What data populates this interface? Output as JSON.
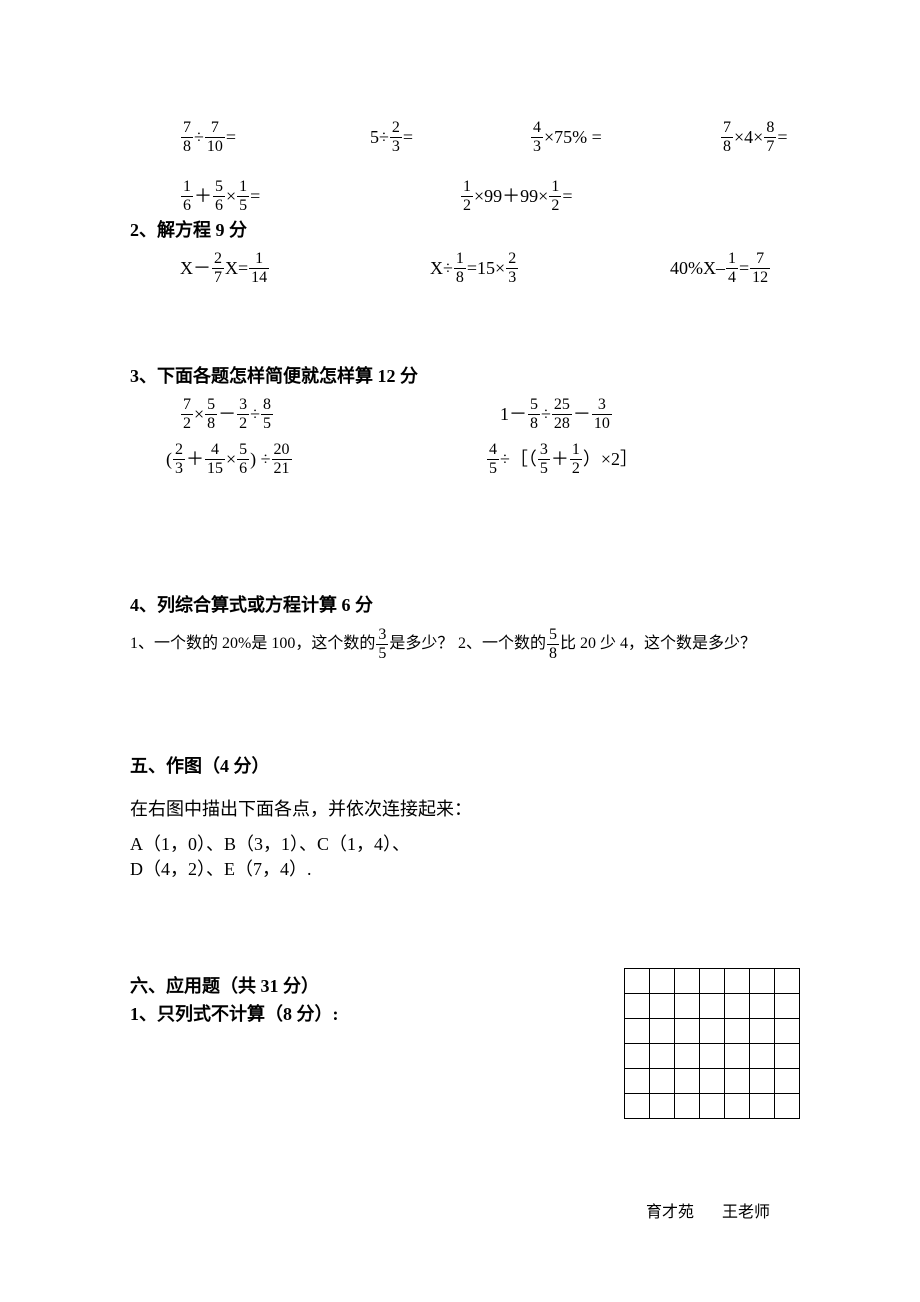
{
  "r1": {
    "e1": {
      "n1": "7",
      "d1": "8",
      "op": "÷",
      "n2": "7",
      "d2": "10",
      "tail": "="
    },
    "e2": {
      "pre": "5÷",
      "n": "2",
      "d": "3",
      "tail": "="
    },
    "e3": {
      "n": "4",
      "d": "3",
      "tail": "×75% ="
    },
    "e4": {
      "n1": "7",
      "d1": "8",
      "mid": "×4×",
      "n2": "8",
      "d2": "7",
      "tail": "="
    }
  },
  "r2": {
    "e1": {
      "n1": "1",
      "d1": "6",
      "op": "＋",
      "n2": "5",
      "d2": "6",
      "op2": "×",
      "n3": "1",
      "d3": "5",
      "tail": "="
    },
    "e2": {
      "n1": "1",
      "d1": "2",
      "mid": "×99＋99×",
      "n2": "1",
      "d2": "2",
      "tail": "="
    }
  },
  "h2": "2、解方程 9 分",
  "r3": {
    "e1": {
      "pre": "X－",
      "n": "2",
      "d": "7",
      "tail1": "X=",
      "n2": "1",
      "d2": "14"
    },
    "e2": {
      "pre": "X÷",
      "n": "1",
      "d": "8",
      "mid": "=15×",
      "n2": "2",
      "d2": "3"
    },
    "e3": {
      "pre": "40%X–",
      "n": "1",
      "d": "4",
      "mid": "=",
      "n2": "7",
      "d2": "12"
    }
  },
  "h3": "3、下面各题怎样简便就怎样算 12 分",
  "r4": {
    "e1": {
      "n1": "7",
      "d1": "2",
      "op1": "×",
      "n2": "5",
      "d2": "8",
      "op2": "－",
      "n3": "3",
      "d3": "2",
      "op3": "÷",
      "n4": "8",
      "d4": "5"
    },
    "e2": {
      "pre": "1－",
      "n1": "5",
      "d1": "8",
      "op1": "÷",
      "n2": "25",
      "d2": "28",
      "op2": "－",
      "n3": "3",
      "d3": "10"
    }
  },
  "r5": {
    "e1": {
      "open": "(",
      "n1": "2",
      "d1": "3",
      "op1": "＋",
      "n2": "4",
      "d2": "15",
      "op2": "×",
      "n3": "5",
      "d3": "6",
      "close": ")  ÷",
      "n4": "20",
      "d4": "21"
    },
    "e2": {
      "n1": "4",
      "d1": "5",
      "op1": "÷［（",
      "n2": "3",
      "d2": "5",
      "op2": "＋",
      "n3": "1",
      "d3": "2",
      "close": "）×2］"
    }
  },
  "h4": "4、列综合算式或方程计算 6 分",
  "r6": {
    "e1": {
      "pre": "1、一个数的 20%是 100，这个数的",
      "n": "3",
      "d": "5",
      "tail": "是多少？"
    },
    "e2": {
      "pre": "2、一个数的",
      "n": "5",
      "d": "8",
      "tail": "比 20 少 4，这个数是多少？"
    }
  },
  "h5": "五、作图（4 分）",
  "p5a": "在右图中描出下面各点，并依次连接起来：",
  "p5b": "A（1，0）、B（3，1）、C（1，4）、",
  "p5c": "D（4，2）、E（7，4）.",
  "h6a": "六、应用题（共 31 分）",
  "h6b": "1、只列式不计算（8 分）:",
  "footer_a": "育才苑",
  "footer_b": "王老师",
  "grid": {
    "rows": 6,
    "cols": 7
  }
}
